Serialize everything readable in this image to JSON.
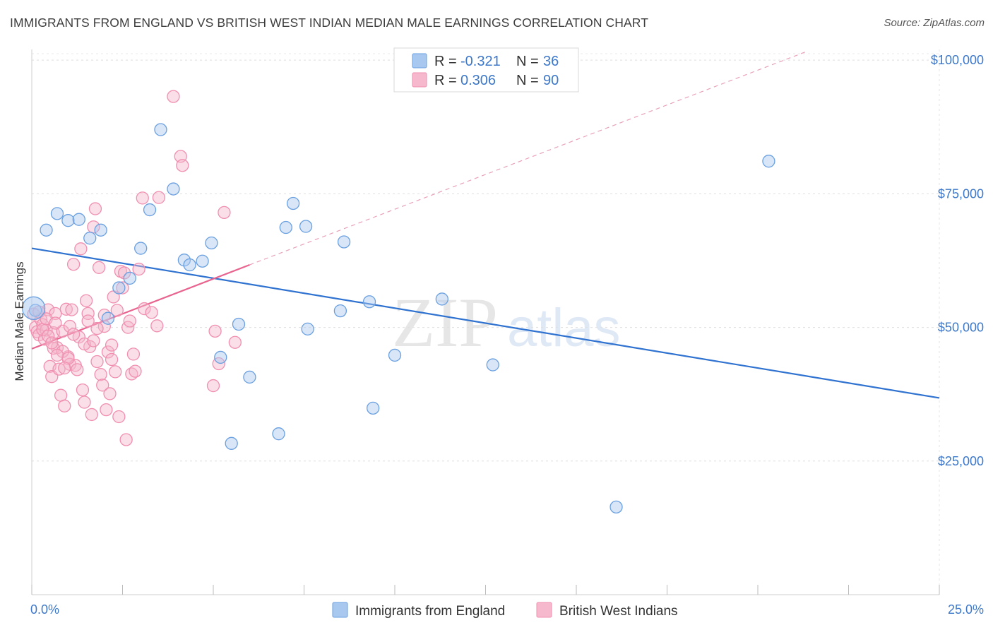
{
  "header": {
    "title": "IMMIGRANTS FROM ENGLAND VS BRITISH WEST INDIAN MEDIAN MALE EARNINGS CORRELATION CHART",
    "source": "Source: ZipAtlas.com"
  },
  "watermark": {
    "part1": "ZIP",
    "part2": "atlas"
  },
  "legend_top": {
    "r_label": "R = ",
    "n_label": "N = ",
    "rows": [
      {
        "r": "-0.321",
        "n": "36",
        "color": "#a8c8f0"
      },
      {
        "r": "0.306",
        "n": "90",
        "color": "#f5b8cc"
      }
    ]
  },
  "chart_data": {
    "type": "scatter",
    "title": "IMMIGRANTS FROM ENGLAND VS BRITISH WEST INDIAN MEDIAN MALE EARNINGS CORRELATION CHART",
    "xlabel": "",
    "ylabel": "Median Male Earnings",
    "xlim": [
      0,
      25
    ],
    "ylim": [
      0,
      102000
    ],
    "x_tick_labels": [
      "0.0%",
      "25.0%"
    ],
    "y_ticks": [
      {
        "value": 25000,
        "label": "$25,000"
      },
      {
        "value": 50000,
        "label": "$50,000"
      },
      {
        "value": 75000,
        "label": "$75,000"
      },
      {
        "value": 100000,
        "label": "$100,000"
      }
    ],
    "grid": true,
    "legend_position": "top-center",
    "series": [
      {
        "name": "Immigrants from England",
        "color": "#6aa0e0",
        "fill": "#a8c8f0",
        "line_color": "#2f72d0",
        "trend": {
          "x0": 0,
          "y0": 64800,
          "x1": 25,
          "y1": 36800
        },
        "points": [
          [
            0.1,
            53200
          ],
          [
            0.4,
            68200
          ],
          [
            0.7,
            71300
          ],
          [
            1.0,
            70000
          ],
          [
            1.3,
            70200
          ],
          [
            1.6,
            66700
          ],
          [
            1.9,
            68200
          ],
          [
            2.1,
            51700
          ],
          [
            2.4,
            57400
          ],
          [
            2.7,
            59200
          ],
          [
            3.0,
            64800
          ],
          [
            3.25,
            72000
          ],
          [
            3.55,
            87000
          ],
          [
            3.9,
            75900
          ],
          [
            4.2,
            62600
          ],
          [
            4.35,
            61700
          ],
          [
            4.7,
            62400
          ],
          [
            4.95,
            65800
          ],
          [
            5.2,
            44400
          ],
          [
            5.5,
            28300
          ],
          [
            5.7,
            50600
          ],
          [
            6.0,
            40700
          ],
          [
            6.8,
            30100
          ],
          [
            7.0,
            68700
          ],
          [
            7.2,
            73200
          ],
          [
            7.55,
            68900
          ],
          [
            7.6,
            49700
          ],
          [
            8.5,
            53100
          ],
          [
            8.6,
            66000
          ],
          [
            9.3,
            54800
          ],
          [
            9.4,
            34900
          ],
          [
            10.0,
            44800
          ],
          [
            11.3,
            55300
          ],
          [
            12.7,
            43000
          ],
          [
            16.1,
            16400
          ],
          [
            20.3,
            81100
          ]
        ]
      },
      {
        "name": "British West Indians",
        "color": "#f08fb0",
        "fill": "#f5b8cc",
        "line_color": "#e8648f",
        "trend": {
          "x0": 0,
          "y0": 46000,
          "x1": 6.0,
          "y1": 61700
        },
        "trend_dashed": {
          "x0": 6.0,
          "y0": 61700,
          "x1": 21.3,
          "y1": 101500
        },
        "points": [
          [
            0.05,
            52500
          ],
          [
            0.1,
            50000
          ],
          [
            0.15,
            49200
          ],
          [
            0.2,
            48600
          ],
          [
            0.25,
            51500
          ],
          [
            0.3,
            50500
          ],
          [
            0.35,
            47800
          ],
          [
            0.4,
            49500
          ],
          [
            0.45,
            53300
          ],
          [
            0.5,
            42700
          ],
          [
            0.55,
            40800
          ],
          [
            0.6,
            49000
          ],
          [
            0.65,
            52600
          ],
          [
            0.7,
            46200
          ],
          [
            0.75,
            42200
          ],
          [
            0.8,
            37300
          ],
          [
            0.85,
            49300
          ],
          [
            0.9,
            35300
          ],
          [
            0.95,
            53400
          ],
          [
            1.0,
            44500
          ],
          [
            1.05,
            43100
          ],
          [
            1.1,
            53300
          ],
          [
            1.15,
            61800
          ],
          [
            1.2,
            42900
          ],
          [
            1.3,
            48200
          ],
          [
            1.35,
            64700
          ],
          [
            1.4,
            38300
          ],
          [
            1.45,
            36000
          ],
          [
            1.5,
            55000
          ],
          [
            1.55,
            52600
          ],
          [
            1.6,
            46400
          ],
          [
            1.65,
            33700
          ],
          [
            1.7,
            68800
          ],
          [
            1.75,
            72200
          ],
          [
            1.8,
            43600
          ],
          [
            1.85,
            61200
          ],
          [
            1.9,
            41200
          ],
          [
            1.95,
            39200
          ],
          [
            2.0,
            50200
          ],
          [
            2.05,
            34600
          ],
          [
            2.1,
            45400
          ],
          [
            2.15,
            37600
          ],
          [
            2.2,
            44000
          ],
          [
            2.25,
            55700
          ],
          [
            2.3,
            41700
          ],
          [
            2.35,
            53200
          ],
          [
            2.4,
            33300
          ],
          [
            2.45,
            60500
          ],
          [
            2.5,
            57400
          ],
          [
            2.55,
            60200
          ],
          [
            2.6,
            29000
          ],
          [
            2.65,
            50000
          ],
          [
            2.7,
            51200
          ],
          [
            2.75,
            41300
          ],
          [
            2.8,
            45000
          ],
          [
            2.85,
            41800
          ],
          [
            2.95,
            60900
          ],
          [
            3.05,
            74200
          ],
          [
            3.1,
            53500
          ],
          [
            3.3,
            52800
          ],
          [
            3.45,
            50300
          ],
          [
            3.5,
            74300
          ],
          [
            3.9,
            93200
          ],
          [
            4.1,
            82000
          ],
          [
            4.15,
            80300
          ],
          [
            5.3,
            71500
          ],
          [
            5.0,
            39100
          ],
          [
            5.05,
            49300
          ],
          [
            5.15,
            43200
          ],
          [
            5.6,
            47200
          ],
          [
            0.6,
            46100
          ],
          [
            0.85,
            45500
          ],
          [
            1.0,
            44200
          ],
          [
            1.25,
            42100
          ],
          [
            0.3,
            49600
          ],
          [
            0.45,
            48400
          ],
          [
            0.55,
            47100
          ],
          [
            0.7,
            44800
          ],
          [
            0.9,
            42400
          ],
          [
            1.05,
            50200
          ],
          [
            1.15,
            48700
          ],
          [
            1.45,
            46900
          ],
          [
            1.55,
            51200
          ],
          [
            1.7,
            47500
          ],
          [
            1.8,
            49800
          ],
          [
            2.0,
            52300
          ],
          [
            2.2,
            46700
          ],
          [
            0.2,
            52900
          ],
          [
            0.4,
            51600
          ],
          [
            0.65,
            50800
          ]
        ]
      }
    ]
  }
}
